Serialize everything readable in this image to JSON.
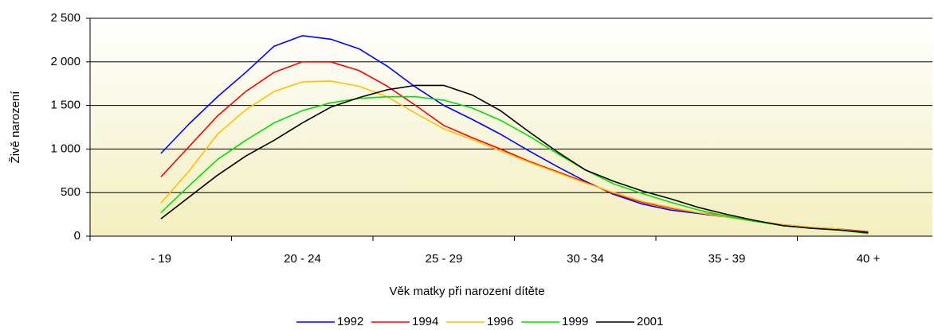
{
  "chart_data": {
    "type": "line",
    "xlabel": "Věk matky při narození dítěte",
    "ylabel": "Živě narození",
    "categories": [
      "- 19",
      null,
      null,
      null,
      null,
      "20 - 24",
      null,
      null,
      null,
      null,
      "25 - 29",
      null,
      null,
      null,
      null,
      "30 - 34",
      null,
      null,
      null,
      null,
      "35 - 39",
      null,
      null,
      null,
      null,
      "40 +"
    ],
    "series": [
      {
        "name": "1992",
        "color": "#0000ff",
        "values": [
          950,
          1290,
          1600,
          1880,
          2180,
          2300,
          2260,
          2150,
          1950,
          1710,
          1500,
          1340,
          1170,
          980,
          800,
          630,
          480,
          370,
          300,
          260,
          220,
          170,
          130,
          100,
          80,
          50
        ]
      },
      {
        "name": "1994",
        "color": "#ff0000",
        "values": [
          680,
          1030,
          1380,
          1660,
          1880,
          2000,
          2000,
          1900,
          1720,
          1500,
          1270,
          1130,
          1000,
          860,
          740,
          620,
          490,
          390,
          320,
          270,
          230,
          170,
          130,
          100,
          80,
          50
        ]
      },
      {
        "name": "1996",
        "color": "#ffc000",
        "values": [
          380,
          750,
          1170,
          1450,
          1660,
          1770,
          1780,
          1720,
          1600,
          1410,
          1230,
          1110,
          980,
          850,
          730,
          610,
          500,
          400,
          330,
          270,
          220,
          170,
          130,
          100,
          80,
          40
        ]
      },
      {
        "name": "1999",
        "color": "#00e000",
        "values": [
          270,
          580,
          880,
          1100,
          1300,
          1440,
          1530,
          1580,
          1600,
          1600,
          1560,
          1470,
          1330,
          1150,
          950,
          760,
          600,
          490,
          390,
          300,
          230,
          170,
          120,
          90,
          70,
          30
        ]
      },
      {
        "name": "2001",
        "color": "#000000",
        "values": [
          200,
          450,
          700,
          920,
          1100,
          1300,
          1480,
          1590,
          1680,
          1730,
          1730,
          1620,
          1440,
          1200,
          970,
          760,
          630,
          520,
          430,
          330,
          250,
          180,
          120,
          90,
          70,
          40
        ]
      }
    ],
    "ylim": [
      0,
      2500
    ],
    "yticks": [
      0,
      500,
      {
        "value": 1000,
        "label": "1 000"
      },
      {
        "value": 1500,
        "label": "1 500"
      },
      {
        "value": 2000,
        "label": "2 000"
      },
      {
        "value": 2500,
        "label": "2 500"
      }
    ],
    "grid": true,
    "legend": "bottom"
  }
}
